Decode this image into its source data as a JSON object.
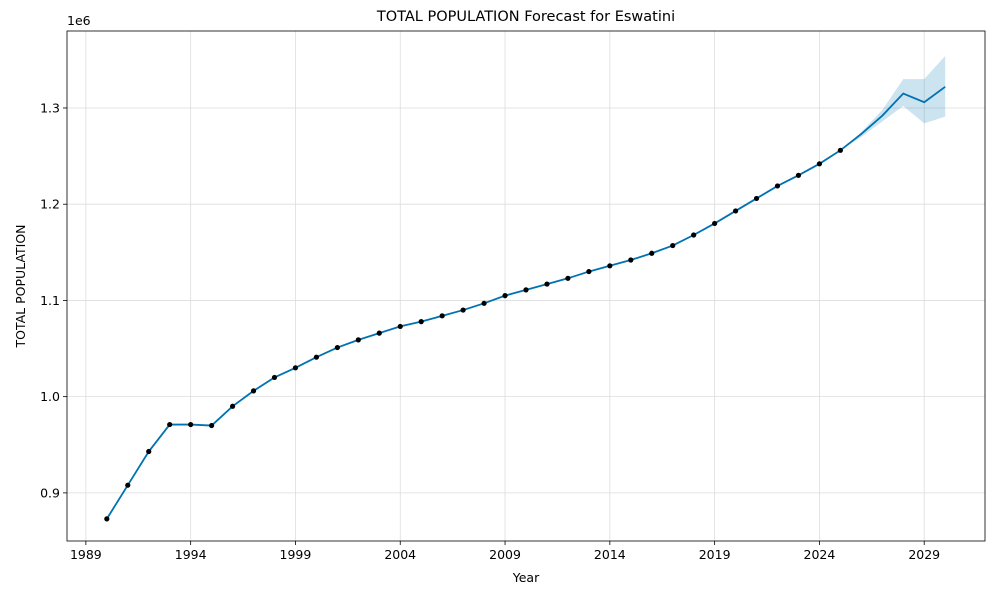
{
  "chart_data": {
    "type": "line",
    "title": "TOTAL POPULATION Forecast for Eswatini",
    "xlabel": "Year",
    "ylabel": "TOTAL POPULATION",
    "offset_label": "1e6",
    "xlim": [
      1988.1,
      2031.9
    ],
    "ylim": [
      0.85,
      1.38
    ],
    "x_ticks": [
      1989,
      1994,
      1999,
      2004,
      2009,
      2014,
      2019,
      2024,
      2029
    ],
    "y_ticks": [
      0.9,
      1.0,
      1.1,
      1.2,
      1.3
    ],
    "y_tick_labels": [
      "0.9",
      "1.0",
      "1.1",
      "1.2",
      "1.3"
    ],
    "grid": true,
    "colors": {
      "forecast_line": "#0072B2",
      "interval_fill": "#0072B2",
      "observed_points": "#000000",
      "grid": "#dddddd"
    },
    "observed": {
      "x": [
        1990,
        1991,
        1992,
        1993,
        1994,
        1995,
        1996,
        1997,
        1998,
        1999,
        2000,
        2001,
        2002,
        2003,
        2004,
        2005,
        2006,
        2007,
        2008,
        2009,
        2010,
        2011,
        2012,
        2013,
        2014,
        2015,
        2016,
        2017,
        2018,
        2019,
        2020,
        2021,
        2022,
        2023,
        2024,
        2025
      ],
      "y": [
        0.873,
        0.908,
        0.943,
        0.971,
        0.971,
        0.97,
        0.99,
        1.006,
        1.02,
        1.03,
        1.041,
        1.051,
        1.059,
        1.066,
        1.073,
        1.078,
        1.084,
        1.09,
        1.097,
        1.105,
        1.111,
        1.117,
        1.123,
        1.13,
        1.136,
        1.142,
        1.149,
        1.157,
        1.168,
        1.18,
        1.193,
        1.206,
        1.219,
        1.23,
        1.242,
        1.256
      ]
    },
    "forecast": {
      "x": [
        1990,
        1991,
        1992,
        1993,
        1994,
        1995,
        1996,
        1997,
        1998,
        1999,
        2000,
        2001,
        2002,
        2003,
        2004,
        2005,
        2006,
        2007,
        2008,
        2009,
        2010,
        2011,
        2012,
        2013,
        2014,
        2015,
        2016,
        2017,
        2018,
        2019,
        2020,
        2021,
        2022,
        2023,
        2024,
        2025,
        2026,
        2027,
        2028,
        2029,
        2030
      ],
      "yhat": [
        0.873,
        0.908,
        0.943,
        0.971,
        0.971,
        0.97,
        0.99,
        1.006,
        1.02,
        1.03,
        1.041,
        1.051,
        1.059,
        1.066,
        1.073,
        1.078,
        1.084,
        1.09,
        1.097,
        1.105,
        1.111,
        1.117,
        1.123,
        1.13,
        1.136,
        1.142,
        1.149,
        1.157,
        1.168,
        1.18,
        1.193,
        1.206,
        1.219,
        1.23,
        1.242,
        1.256,
        1.273,
        1.292,
        1.315,
        1.306,
        1.322
      ],
      "yhat_lower": [
        0.873,
        0.908,
        0.943,
        0.971,
        0.971,
        0.97,
        0.99,
        1.006,
        1.02,
        1.03,
        1.041,
        1.051,
        1.059,
        1.066,
        1.073,
        1.078,
        1.084,
        1.09,
        1.097,
        1.105,
        1.111,
        1.117,
        1.123,
        1.13,
        1.136,
        1.142,
        1.149,
        1.157,
        1.168,
        1.18,
        1.193,
        1.206,
        1.219,
        1.23,
        1.242,
        1.256,
        1.27,
        1.286,
        1.302,
        1.284,
        1.291
      ],
      "yhat_upper": [
        0.873,
        0.908,
        0.943,
        0.971,
        0.971,
        0.97,
        0.99,
        1.006,
        1.02,
        1.03,
        1.041,
        1.051,
        1.059,
        1.066,
        1.073,
        1.078,
        1.084,
        1.09,
        1.097,
        1.105,
        1.111,
        1.117,
        1.123,
        1.13,
        1.136,
        1.142,
        1.149,
        1.157,
        1.168,
        1.18,
        1.193,
        1.206,
        1.219,
        1.23,
        1.242,
        1.256,
        1.275,
        1.298,
        1.33,
        1.33,
        1.354
      ]
    }
  }
}
